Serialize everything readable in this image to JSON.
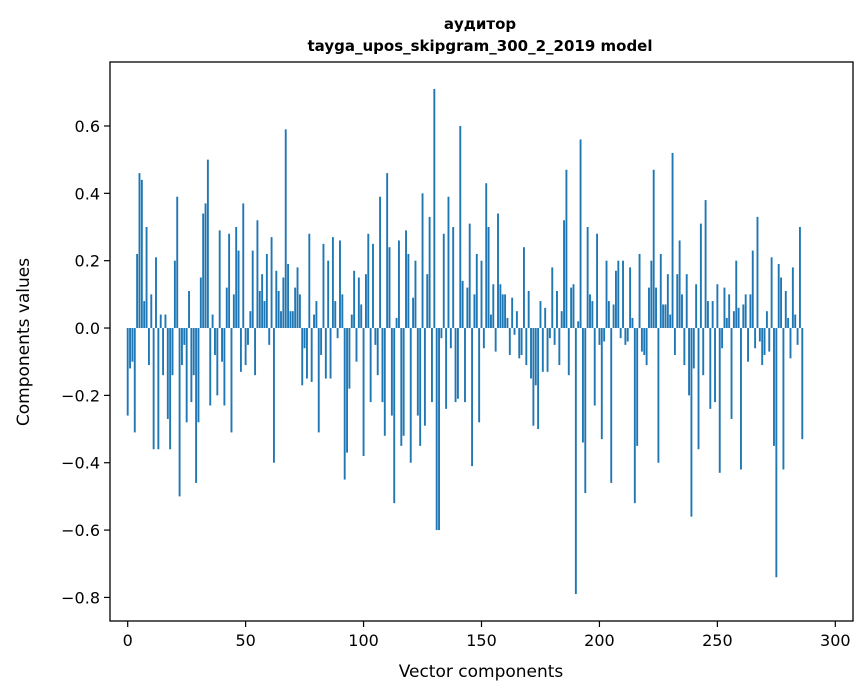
{
  "chart_data": {
    "type": "bar",
    "title": "аудитор",
    "subtitle": "tayga_upos_skipgram_300_2_2019 model",
    "xlabel": "Vector components",
    "ylabel": "Components values",
    "xlim": [
      -7.5,
      307.5
    ],
    "ylim": [
      -0.87,
      0.79
    ],
    "xticks": [
      0,
      50,
      100,
      150,
      200,
      250,
      300
    ],
    "xtick_labels": [
      "0",
      "50",
      "100",
      "150",
      "200",
      "250",
      "300"
    ],
    "yticks": [
      -0.8,
      -0.6,
      -0.4,
      -0.2,
      0.0,
      0.2,
      0.4,
      0.6
    ],
    "ytick_labels": [
      "−0.8",
      "−0.6",
      "−0.4",
      "−0.2",
      "0.0",
      "0.2",
      "0.4",
      "0.6"
    ],
    "grid": false,
    "bar_color": "#1f77b4",
    "series": [
      {
        "name": "components",
        "values": [
          -0.26,
          -0.12,
          -0.1,
          -0.31,
          0.22,
          0.46,
          0.44,
          0.08,
          0.3,
          -0.11,
          0.1,
          -0.36,
          0.21,
          -0.36,
          0.04,
          -0.14,
          0.04,
          -0.27,
          -0.36,
          -0.14,
          0.2,
          0.39,
          -0.5,
          -0.11,
          -0.05,
          -0.28,
          0.11,
          -0.22,
          -0.14,
          -0.46,
          -0.28,
          0.15,
          0.34,
          0.37,
          0.5,
          -0.23,
          0.04,
          -0.08,
          -0.2,
          0.29,
          -0.1,
          -0.23,
          0.12,
          0.28,
          -0.31,
          0.1,
          0.3,
          0.23,
          -0.13,
          0.37,
          -0.11,
          -0.05,
          0.05,
          0.23,
          -0.14,
          0.32,
          0.11,
          0.16,
          0.08,
          0.22,
          -0.05,
          0.27,
          -0.4,
          0.17,
          0.11,
          0.05,
          0.15,
          0.59,
          0.19,
          0.05,
          0.05,
          0.12,
          0.18,
          0.1,
          -0.17,
          -0.06,
          -0.15,
          0.28,
          -0.16,
          0.04,
          0.08,
          -0.31,
          -0.08,
          0.25,
          -0.15,
          0.2,
          -0.15,
          0.27,
          0.08,
          -0.03,
          0.26,
          0.1,
          -0.45,
          -0.37,
          -0.18,
          0.04,
          0.17,
          -0.1,
          0.15,
          0.07,
          -0.38,
          0.16,
          0.28,
          -0.22,
          0.25,
          -0.05,
          -0.14,
          0.39,
          -0.22,
          -0.32,
          0.46,
          0.24,
          -0.26,
          -0.52,
          0.03,
          0.26,
          -0.35,
          -0.32,
          0.29,
          0.22,
          -0.4,
          0.09,
          0.2,
          -0.26,
          -0.35,
          0.4,
          -0.29,
          0.16,
          0.33,
          -0.22,
          0.71,
          -0.6,
          -0.6,
          -0.03,
          0.28,
          -0.24,
          0.39,
          -0.06,
          0.3,
          -0.22,
          -0.21,
          0.6,
          0.14,
          -0.22,
          0.12,
          0.31,
          -0.41,
          0.1,
          0.22,
          -0.28,
          0.2,
          -0.06,
          0.43,
          0.3,
          0.04,
          0.13,
          -0.07,
          0.34,
          0.13,
          0.1,
          0.1,
          0.03,
          -0.08,
          0.09,
          -0.02,
          0.05,
          -0.09,
          -0.08,
          0.24,
          -0.11,
          0.11,
          -0.15,
          -0.29,
          -0.17,
          -0.3,
          0.08,
          -0.13,
          0.06,
          -0.13,
          -0.03,
          0.18,
          -0.05,
          0.11,
          -0.11,
          0.05,
          0.32,
          0.47,
          -0.14,
          0.12,
          0.13,
          -0.79,
          0.02,
          0.56,
          -0.34,
          -0.49,
          0.3,
          0.1,
          0.08,
          -0.23,
          0.28,
          -0.05,
          -0.33,
          -0.04,
          0.2,
          0.08,
          -0.46,
          0.07,
          0.17,
          0.2,
          -0.03,
          0.2,
          -0.05,
          -0.04,
          0.18,
          0.03,
          -0.52,
          -0.35,
          0.22,
          -0.07,
          -0.08,
          -0.11,
          0.12,
          0.2,
          0.47,
          0.12,
          -0.4,
          0.22,
          0.07,
          0.07,
          0.16,
          0.04,
          0.52,
          -0.08,
          0.16,
          0.26,
          0.1,
          -0.11,
          0.16,
          -0.2,
          -0.56,
          -0.12,
          0.13,
          -0.36,
          0.31,
          -0.14,
          0.38,
          0.08,
          -0.24,
          0.08,
          -0.22,
          0.13,
          -0.43,
          -0.06,
          0.12,
          0.03,
          0.1,
          -0.27,
          0.05,
          0.2,
          0.06,
          -0.42,
          0.07,
          0.1,
          -0.1,
          0.1,
          0.23,
          -0.06,
          0.33,
          -0.04,
          -0.11,
          -0.08,
          0.05,
          -0.07,
          0.21,
          -0.35,
          -0.74,
          0.19,
          0.15,
          -0.42,
          0.11,
          0.03,
          -0.09,
          0.18,
          0.04,
          -0.05,
          0.3,
          -0.33
        ]
      }
    ]
  }
}
